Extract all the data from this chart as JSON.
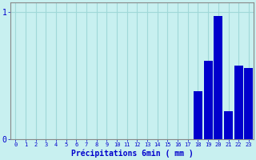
{
  "title": "",
  "xlabel": "Précipitations 6min ( mm )",
  "categories": [
    0,
    1,
    2,
    3,
    4,
    5,
    6,
    7,
    8,
    9,
    10,
    11,
    12,
    13,
    14,
    15,
    16,
    17,
    18,
    19,
    20,
    21,
    22,
    23
  ],
  "values": [
    0,
    0,
    0,
    0,
    0,
    0,
    0,
    0,
    0,
    0,
    0,
    0,
    0,
    0,
    0,
    0,
    0,
    0,
    0.38,
    0.62,
    0.97,
    0.22,
    0.58,
    0.56
  ],
  "bar_color": "#0000cc",
  "bg_color": "#c8f0f0",
  "grid_color": "#a0d8d8",
  "axis_color": "#888888",
  "text_color": "#0000cc",
  "ylim": [
    0,
    1.08
  ],
  "yticks": [
    0,
    1
  ],
  "ytick_labels": [
    "0",
    "1"
  ],
  "xlim": [
    -0.5,
    23.5
  ]
}
